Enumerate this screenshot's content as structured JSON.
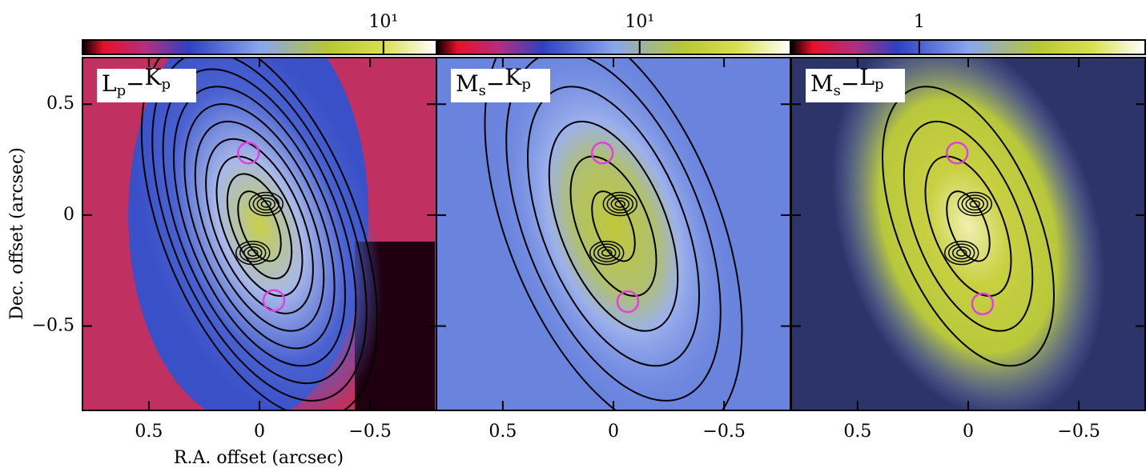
{
  "chart_data": [
    {
      "type": "image",
      "label_parts": [
        "L",
        "p",
        "−",
        "K",
        "p"
      ],
      "xlabel": "R.A. offset (arcsec)",
      "ylabel": "Dec. offset (arcsec)",
      "xlim": [
        0.8,
        -0.8
      ],
      "ylim": [
        -0.88,
        0.71
      ],
      "xticks": [
        0.5,
        0,
        {
          "value": -0.5,
          "label": "−0.5"
        }
      ],
      "yticks": [
        0.5,
        0,
        {
          "value": -0.5,
          "label": "−0.5"
        }
      ],
      "clim": [
        1,
        15
      ],
      "log_colorbar": true,
      "cticks": [
        {
          "value": 10,
          "label": "10¹"
        }
      ],
      "markers": {
        "color": "#e040e0",
        "x": [
          0.05,
          -0.065
        ],
        "y": [
          0.28,
          -0.385
        ]
      }
    },
    {
      "type": "image",
      "label_parts": [
        "M",
        "s",
        "−",
        "K",
        "p"
      ],
      "xlim": [
        0.8,
        -0.8
      ],
      "ylim": [
        -0.88,
        0.71
      ],
      "xticks": [
        0.5,
        0,
        {
          "value": -0.5,
          "label": "−0.5"
        }
      ],
      "clim": [
        2,
        33
      ],
      "log_colorbar": true,
      "cticks": [
        {
          "value": 10,
          "label": "10¹"
        }
      ],
      "markers": {
        "color": "#e040e0",
        "x": [
          0.05,
          -0.065
        ],
        "y": [
          0.28,
          -0.39
        ]
      }
    },
    {
      "type": "image",
      "label_parts": [
        "M",
        "s",
        "−",
        "L",
        "p"
      ],
      "xlim": [
        0.8,
        -0.8
      ],
      "ylim": [
        -0.88,
        0.71
      ],
      "xticks": [
        0.5,
        0,
        {
          "value": -0.5,
          "label": "−0.5"
        }
      ],
      "clim": [
        0.5,
        3.4
      ],
      "log_colorbar": true,
      "cticks": [
        1
      ],
      "markers": {
        "color": "#e040e0",
        "x": [
          0.05,
          -0.065
        ],
        "y": [
          0.28,
          -0.4
        ]
      }
    }
  ]
}
